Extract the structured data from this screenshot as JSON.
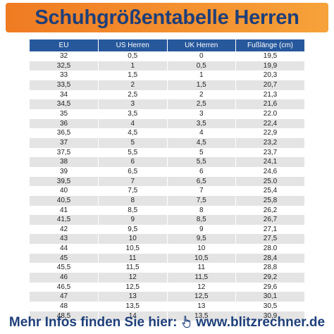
{
  "header": {
    "title": "Schuhgrößentabelle Herren"
  },
  "table": {
    "columns": [
      "EU",
      "US Herren",
      "UK Herren",
      "Fußlänge (cm)"
    ],
    "rows": [
      [
        "32",
        "0,5",
        "0",
        "19,5"
      ],
      [
        "32,5",
        "1",
        "0,5",
        "19,9"
      ],
      [
        "33",
        "1,5",
        "1",
        "20,3"
      ],
      [
        "33,5",
        "2",
        "1,5",
        "20,7"
      ],
      [
        "34",
        "2,5",
        "2",
        "21,3"
      ],
      [
        "34,5",
        "3",
        "2,5",
        "21,6"
      ],
      [
        "35",
        "3,5",
        "3",
        "22.0"
      ],
      [
        "36",
        "4",
        "3,5",
        "22,4"
      ],
      [
        "36,5",
        "4,5",
        "4",
        "22,9"
      ],
      [
        "37",
        "5",
        "4,5",
        "23,2"
      ],
      [
        "37,5",
        "5,5",
        "5",
        "23,7"
      ],
      [
        "38",
        "6",
        "5,5",
        "24,1"
      ],
      [
        "39",
        "6,5",
        "6",
        "24,6"
      ],
      [
        "39,5",
        "7",
        "6,5",
        "25.0"
      ],
      [
        "40",
        "7,5",
        "7",
        "25,4"
      ],
      [
        "40,5",
        "8",
        "7,5",
        "25,8"
      ],
      [
        "41",
        "8,5",
        "8",
        "26,2"
      ],
      [
        "41,5",
        "9",
        "8,5",
        "26,7"
      ],
      [
        "42",
        "9,5",
        "9",
        "27,1"
      ],
      [
        "43",
        "10",
        "9,5",
        "27,5"
      ],
      [
        "44",
        "10,5",
        "10",
        "28.0"
      ],
      [
        "45",
        "11",
        "10,5",
        "28,4"
      ],
      [
        "45,5",
        "11,5",
        "11",
        "28,8"
      ],
      [
        "46",
        "12",
        "11,5",
        "29,2"
      ],
      [
        "46,5",
        "12,5",
        "12",
        "29,6"
      ],
      [
        "47",
        "13",
        "12,5",
        "30,1"
      ],
      [
        "48",
        "13,5",
        "13",
        "30,5"
      ],
      [
        "48,5",
        "14",
        "13,5",
        "30,9"
      ]
    ]
  },
  "footer": {
    "prefix": "Mehr Infos finden Sie hier:",
    "link": "www.blitzrechner.de",
    "cursor_icon": "hand-pointer-icon"
  },
  "colors": {
    "banner_start": "#f07b22",
    "banner_end": "#f6a23a",
    "title_text": "#1e3f7a",
    "table_header": "#27589c",
    "row_stripe": "#e4e4e4"
  }
}
